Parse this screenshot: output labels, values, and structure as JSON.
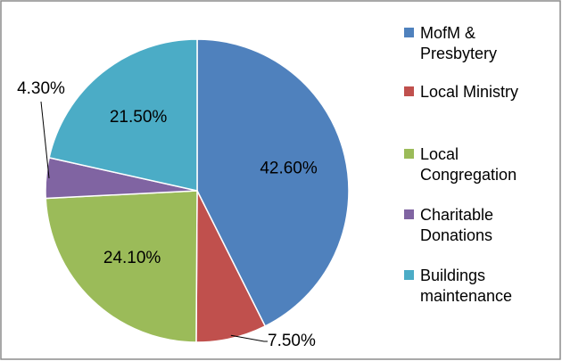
{
  "chart_data": {
    "type": "pie",
    "categories": [
      "MofM & Presbytery",
      "Local Ministry",
      "Local Congregation",
      "Charitable Donations",
      "Buildings maintenance"
    ],
    "values": [
      42.6,
      7.5,
      24.1,
      4.3,
      21.5
    ],
    "value_labels": [
      "42.60%",
      "7.50%",
      "24.10%",
      "4.30%",
      "21.50%"
    ],
    "colors": [
      "#4f81bd",
      "#c0504d",
      "#9bbb59",
      "#8064a2",
      "#4bacc6"
    ],
    "legend": "right"
  }
}
